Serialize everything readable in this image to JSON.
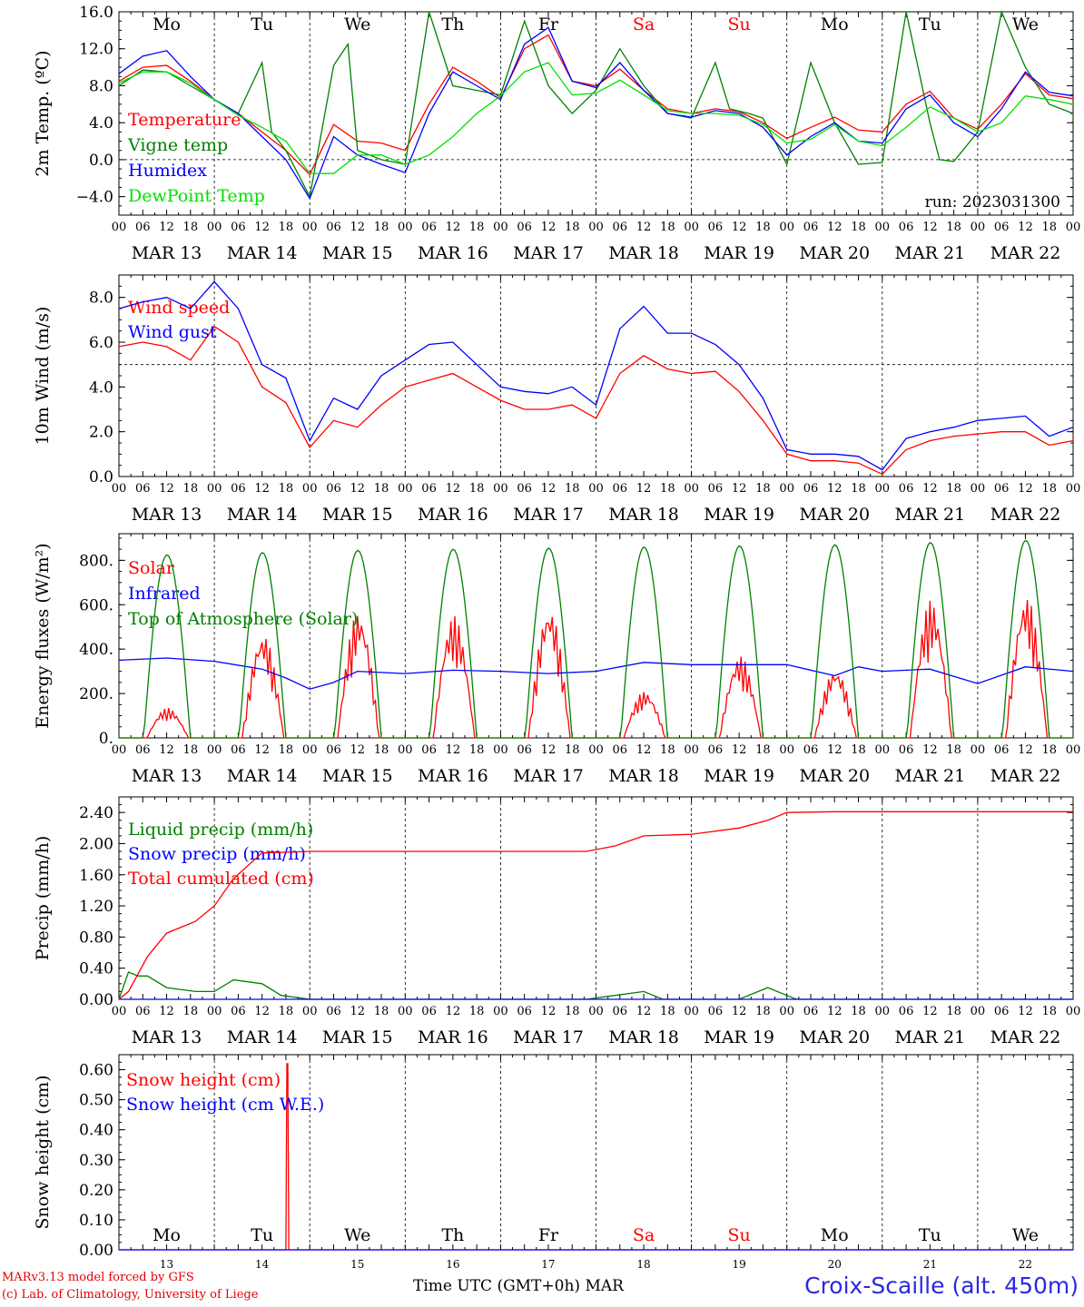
{
  "run_label": "run: 2023031300",
  "footer": {
    "credit_line1": "MARv3.13 model forced by GFS",
    "credit_line2": "(c) Lab. of Climatology, University of Liege",
    "x_axis_title": "Time UTC (GMT+0h) MAR",
    "station": "Croix-Scaille (alt. 450m)"
  },
  "days": {
    "weekday_labels": [
      "Mo",
      "Tu",
      "We",
      "Th",
      "Fr",
      "Sa",
      "Su",
      "Mo",
      "Tu",
      "We"
    ],
    "weekend_flags": [
      false,
      false,
      false,
      false,
      false,
      true,
      true,
      false,
      false,
      false
    ],
    "date_labels": [
      "MAR 13",
      "MAR 14",
      "MAR 15",
      "MAR 16",
      "MAR 17",
      "MAR 18",
      "MAR 19",
      "MAR 20",
      "MAR 21",
      "MAR 22"
    ],
    "day_numbers": [
      "13",
      "14",
      "15",
      "16",
      "17",
      "18",
      "19",
      "20",
      "21",
      "22"
    ],
    "hour_ticks": [
      "00",
      "06",
      "12",
      "18"
    ],
    "final_hour": "00"
  },
  "colors": {
    "red": "#ff0000",
    "green": "#008000",
    "blue": "#0000ff",
    "lime": "#00e000",
    "weekend": "#ff0000"
  },
  "chart_data": [
    {
      "type": "line",
      "ylabel": "2m Temp. (ºC)",
      "ylim": [
        -6,
        16
      ],
      "yticks": [
        16,
        12,
        8,
        4,
        0,
        -4
      ],
      "ytick_labels": [
        "16.0",
        "12.0",
        "8.0",
        "4.0",
        "0.0",
        "−4.0"
      ],
      "ref_line": 0,
      "x_unit": "days since MAR 13 00 UTC",
      "xlim": [
        0,
        10
      ],
      "series": [
        {
          "name": "Temperature",
          "color": "#ff0000",
          "x": [
            0,
            0.25,
            0.5,
            0.75,
            1,
            1.25,
            1.5,
            1.75,
            2,
            2.25,
            2.5,
            2.75,
            3,
            3.25,
            3.5,
            3.75,
            4,
            4.25,
            4.5,
            4.75,
            5,
            5.25,
            5.5,
            5.75,
            6,
            6.25,
            6.5,
            6.75,
            7,
            7.25,
            7.5,
            7.75,
            8,
            8.25,
            8.5,
            8.75,
            9,
            9.25,
            9.5,
            9.75,
            10
          ],
          "y": [
            8.5,
            10.0,
            10.2,
            8.5,
            6.5,
            5.0,
            3.0,
            1.0,
            -1.6,
            3.8,
            2.0,
            1.8,
            1.0,
            6.0,
            10.0,
            8.5,
            6.7,
            12.0,
            13.5,
            8.5,
            8.0,
            9.8,
            7.5,
            5.5,
            5.0,
            5.5,
            5.2,
            4.0,
            2.3,
            3.5,
            4.6,
            3.2,
            3.0,
            6.0,
            7.4,
            4.5,
            3.3,
            6.0,
            9.3,
            7.0,
            6.6
          ]
        },
        {
          "name": "Vigne temp",
          "color": "#008000",
          "x": [
            0,
            0.25,
            0.5,
            0.75,
            1,
            1.25,
            1.5,
            1.6,
            1.75,
            2,
            2.25,
            2.4,
            2.5,
            2.75,
            3,
            3.25,
            3.5,
            3.75,
            4,
            4.25,
            4.5,
            4.75,
            5,
            5.25,
            5.5,
            5.75,
            6,
            6.25,
            6.4,
            6.6,
            6.75,
            7,
            7.25,
            7.5,
            7.75,
            8,
            8.25,
            8.5,
            8.6,
            8.75,
            9,
            9.25,
            9.5,
            9.75,
            10
          ],
          "y": [
            8.0,
            9.7,
            9.5,
            8.0,
            6.5,
            5.0,
            10.5,
            3.0,
            1.0,
            -4.0,
            10.2,
            12.5,
            1.0,
            0.0,
            -0.5,
            16.0,
            8.0,
            7.5,
            7.0,
            15.0,
            8.0,
            5.0,
            7.5,
            12.0,
            8.0,
            5.0,
            4.5,
            10.5,
            5.5,
            5.0,
            4.5,
            -0.5,
            10.5,
            4.0,
            -0.5,
            -0.3,
            16.5,
            4.0,
            0.0,
            -0.2,
            3.0,
            16.0,
            10.0,
            6.0,
            5.0
          ]
        },
        {
          "name": "Humidex",
          "color": "#0000ff",
          "x": [
            0,
            0.25,
            0.5,
            0.75,
            1,
            1.25,
            1.5,
            1.75,
            2,
            2.25,
            2.5,
            2.75,
            3,
            3.25,
            3.5,
            3.75,
            4,
            4.25,
            4.5,
            4.75,
            5,
            5.25,
            5.5,
            5.75,
            6,
            6.25,
            6.5,
            6.75,
            7,
            7.25,
            7.5,
            7.75,
            8,
            8.25,
            8.5,
            8.75,
            9,
            9.25,
            9.5,
            9.75,
            10
          ],
          "y": [
            9.3,
            11.2,
            11.8,
            9.0,
            6.5,
            5.0,
            2.5,
            0.0,
            -4.2,
            2.5,
            0.5,
            -0.5,
            -1.4,
            5.0,
            9.5,
            8.0,
            6.5,
            12.5,
            14.3,
            8.5,
            7.8,
            10.5,
            7.5,
            5.0,
            4.6,
            5.3,
            5.0,
            3.5,
            0.5,
            2.5,
            4.0,
            2.0,
            1.8,
            5.5,
            7.0,
            4.0,
            2.5,
            5.5,
            9.5,
            7.3,
            6.9
          ]
        },
        {
          "name": "DewPoint Temp",
          "color": "#00e000",
          "x": [
            0,
            0.25,
            0.5,
            0.75,
            1,
            1.25,
            1.5,
            1.75,
            2,
            2.25,
            2.5,
            2.75,
            3,
            3.25,
            3.5,
            3.75,
            4,
            4.25,
            4.5,
            4.75,
            5,
            5.25,
            5.5,
            5.75,
            6,
            6.25,
            6.5,
            6.75,
            7,
            7.25,
            7.5,
            7.75,
            8,
            8.25,
            8.5,
            8.75,
            9,
            9.25,
            9.5,
            9.75,
            10
          ],
          "y": [
            8.3,
            9.5,
            9.5,
            8.3,
            6.5,
            4.8,
            3.5,
            2.0,
            -1.5,
            -1.5,
            0.5,
            0.5,
            -0.5,
            0.5,
            2.5,
            5.0,
            6.9,
            9.5,
            10.5,
            7.0,
            7.2,
            8.6,
            7.0,
            5.3,
            5.0,
            5.0,
            4.8,
            3.8,
            1.8,
            2.2,
            3.8,
            2.0,
            1.5,
            3.5,
            5.7,
            4.5,
            3.0,
            4.0,
            6.9,
            6.5,
            6.0
          ]
        }
      ]
    },
    {
      "type": "line",
      "ylabel": "10m Wind (m/s)",
      "ylim": [
        0,
        9
      ],
      "yticks": [
        0,
        2,
        4,
        6,
        8
      ],
      "ytick_labels": [
        "0.0",
        "2.0",
        "4.0",
        "6.0",
        "8.0"
      ],
      "ref_line": 5,
      "xlim": [
        0,
        10
      ],
      "series": [
        {
          "name": "Wind speed",
          "color": "#ff0000",
          "x": [
            0,
            0.25,
            0.5,
            0.75,
            1,
            1.25,
            1.5,
            1.75,
            2,
            2.25,
            2.5,
            2.75,
            3,
            3.25,
            3.5,
            3.75,
            4,
            4.25,
            4.5,
            4.75,
            5,
            5.25,
            5.5,
            5.75,
            6,
            6.25,
            6.5,
            6.75,
            7,
            7.25,
            7.5,
            7.75,
            8,
            8.25,
            8.5,
            8.75,
            9,
            9.25,
            9.5,
            9.75,
            10
          ],
          "y": [
            5.8,
            6.0,
            5.8,
            5.2,
            6.7,
            6.0,
            4.0,
            3.3,
            1.3,
            2.5,
            2.2,
            3.2,
            4.0,
            4.3,
            4.6,
            4.0,
            3.4,
            3.0,
            3.0,
            3.2,
            2.6,
            4.6,
            5.4,
            4.8,
            4.6,
            4.7,
            3.8,
            2.5,
            1.0,
            0.7,
            0.7,
            0.6,
            0.1,
            1.2,
            1.6,
            1.8,
            1.9,
            2.0,
            2.0,
            1.4,
            1.6
          ]
        },
        {
          "name": "Wind gust",
          "color": "#0000ff",
          "x": [
            0,
            0.25,
            0.5,
            0.75,
            1,
            1.25,
            1.5,
            1.75,
            2,
            2.25,
            2.5,
            2.75,
            3,
            3.25,
            3.5,
            3.75,
            4,
            4.25,
            4.5,
            4.75,
            5,
            5.25,
            5.5,
            5.75,
            6,
            6.25,
            6.5,
            6.75,
            7,
            7.25,
            7.5,
            7.75,
            8,
            8.25,
            8.5,
            8.75,
            9,
            9.25,
            9.5,
            9.75,
            10
          ],
          "y": [
            7.5,
            7.8,
            8.0,
            7.5,
            8.7,
            7.5,
            5.0,
            4.4,
            1.6,
            3.5,
            3.0,
            4.5,
            5.2,
            5.9,
            6.0,
            5.0,
            4.0,
            3.8,
            3.7,
            4.0,
            3.2,
            6.6,
            7.6,
            6.4,
            6.4,
            5.9,
            5.0,
            3.5,
            1.2,
            1.0,
            1.0,
            0.9,
            0.3,
            1.7,
            2.0,
            2.2,
            2.5,
            2.6,
            2.7,
            1.8,
            2.2
          ]
        }
      ]
    },
    {
      "type": "line",
      "ylabel": "Energy fluxes (W/m²)",
      "ylim": [
        0,
        920
      ],
      "yticks": [
        0,
        200,
        400,
        600,
        800
      ],
      "ytick_labels": [
        "0.",
        "200.",
        "400.",
        "600.",
        "800."
      ],
      "xlim": [
        0,
        10
      ],
      "series": [
        {
          "name": "Solar",
          "color": "#ff0000",
          "daily_peak": [
            135,
            470,
            570,
            550,
            590,
            210,
            370,
            310,
            620,
            640
          ]
        },
        {
          "name": "Infrared",
          "color": "#0000ff",
          "x": [
            0,
            0.5,
            1,
            1.5,
            1.75,
            2,
            2.25,
            2.5,
            3,
            3.5,
            4,
            4.5,
            5,
            5.5,
            6,
            6.5,
            7,
            7.5,
            7.75,
            8,
            8.5,
            9,
            9.5,
            10
          ],
          "y": [
            350,
            360,
            345,
            310,
            270,
            220,
            250,
            300,
            290,
            305,
            300,
            290,
            300,
            340,
            330,
            330,
            330,
            280,
            320,
            300,
            310,
            245,
            320,
            300
          ]
        },
        {
          "name": "Top of Atmosphere (Solar)",
          "color": "#008000",
          "daily_peak": [
            825,
            835,
            845,
            850,
            855,
            860,
            865,
            870,
            880,
            890
          ]
        }
      ]
    },
    {
      "type": "line",
      "ylabel": "Precip (mm/h)",
      "ylim": [
        0,
        2.6
      ],
      "yticks": [
        0,
        0.4,
        0.8,
        1.2,
        1.6,
        2.0,
        2.4
      ],
      "ytick_labels": [
        "0.00",
        "0.40",
        "0.80",
        "1.20",
        "1.60",
        "2.00",
        "2.40"
      ],
      "xlim": [
        0,
        10
      ],
      "series": [
        {
          "name": "Liquid precip (mm/h)",
          "color": "#008000",
          "x": [
            0,
            0.1,
            0.2,
            0.3,
            0.5,
            0.8,
            1,
            1.2,
            1.5,
            1.7,
            2,
            4.9,
            5.2,
            5.5,
            5.7,
            6.5,
            6.8,
            7,
            7.1,
            7.3,
            10
          ],
          "y": [
            0,
            0.35,
            0.3,
            0.3,
            0.15,
            0.1,
            0.1,
            0.25,
            0.2,
            0.05,
            0,
            0,
            0.05,
            0.1,
            0,
            0,
            0.15,
            0.05,
            0,
            0,
            0
          ]
        },
        {
          "name": "Snow precip (mm/h)",
          "color": "#0000ff",
          "x": [
            0,
            10
          ],
          "y": [
            0,
            0
          ]
        },
        {
          "name": "Total cumulated (cm)",
          "color": "#ff0000",
          "x": [
            0,
            0.1,
            0.3,
            0.5,
            0.8,
            1,
            1.2,
            1.5,
            2,
            3,
            4,
            4.9,
            5.2,
            5.5,
            6,
            6.5,
            6.8,
            7,
            7.5,
            8,
            10
          ],
          "y": [
            0,
            0.1,
            0.55,
            0.85,
            1.0,
            1.2,
            1.55,
            1.88,
            1.9,
            1.9,
            1.9,
            1.9,
            1.97,
            2.1,
            2.12,
            2.2,
            2.3,
            2.4,
            2.41,
            2.41,
            2.41
          ]
        }
      ]
    },
    {
      "type": "line",
      "ylabel": "Snow height (cm)",
      "ylim": [
        0,
        0.65
      ],
      "yticks": [
        0,
        0.1,
        0.2,
        0.3,
        0.4,
        0.5,
        0.6
      ],
      "ytick_labels": [
        "0.00",
        "0.10",
        "0.20",
        "0.30",
        "0.40",
        "0.50",
        "0.60"
      ],
      "xlim": [
        0,
        10
      ],
      "series": [
        {
          "name": "Snow height (cm)",
          "color": "#ff0000",
          "x": [
            0,
            1.75,
            1.76,
            1.77,
            1.78,
            10
          ],
          "y": [
            0,
            0,
            0.62,
            0.62,
            0,
            0
          ]
        },
        {
          "name": "Snow height (cm W.E.)",
          "color": "#0000ff",
          "x": [
            0,
            10
          ],
          "y": [
            0,
            0
          ]
        }
      ]
    }
  ]
}
